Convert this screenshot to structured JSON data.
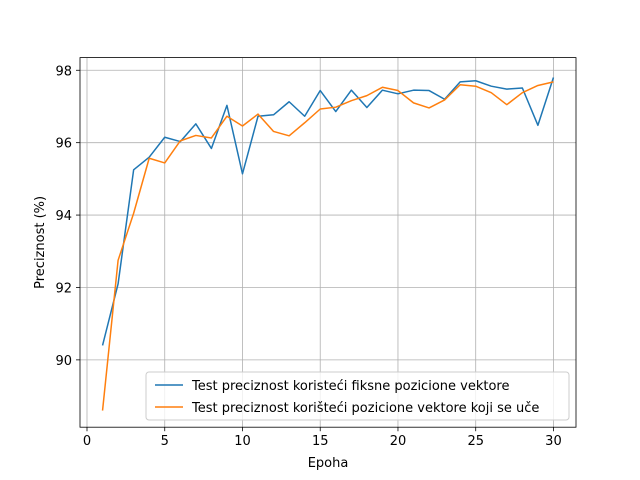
{
  "chart_data": {
    "type": "line",
    "title": "",
    "xlabel": "Epoha",
    "ylabel": "Preciznost (%)",
    "xlim": [
      -0.45,
      31.45
    ],
    "ylim": [
      88.14,
      98.35
    ],
    "xticks": [
      0,
      5,
      10,
      15,
      20,
      25,
      30
    ],
    "yticks": [
      90,
      92,
      94,
      96,
      98
    ],
    "grid": true,
    "legend_position": "lower-right",
    "x": [
      1,
      2,
      3,
      4,
      5,
      6,
      7,
      8,
      9,
      10,
      11,
      12,
      13,
      14,
      15,
      16,
      17,
      18,
      19,
      20,
      21,
      22,
      23,
      24,
      25,
      26,
      27,
      28,
      29,
      30
    ],
    "series": [
      {
        "name": "Test preciznost koristeći fiksne pozicione vektore",
        "color": "#1f77b4",
        "values": [
          90.4,
          92.1,
          95.25,
          95.6,
          96.15,
          96.03,
          96.52,
          95.84,
          97.03,
          95.14,
          96.73,
          96.77,
          97.13,
          96.73,
          97.44,
          96.86,
          97.45,
          96.97,
          97.45,
          97.35,
          97.45,
          97.44,
          97.2,
          97.68,
          97.71,
          97.56,
          97.48,
          97.51,
          96.48,
          97.8
        ]
      },
      {
        "name": "Test preciznost korišteći pozicione vektore koji se uče",
        "color": "#ff7f0e",
        "values": [
          88.6,
          92.75,
          94.05,
          95.57,
          95.44,
          96.05,
          96.2,
          96.13,
          96.73,
          96.46,
          96.79,
          96.31,
          96.19,
          96.55,
          96.93,
          96.98,
          97.16,
          97.3,
          97.53,
          97.44,
          97.1,
          96.96,
          97.18,
          97.6,
          97.56,
          97.38,
          97.05,
          97.38,
          97.58,
          97.68
        ]
      }
    ]
  }
}
